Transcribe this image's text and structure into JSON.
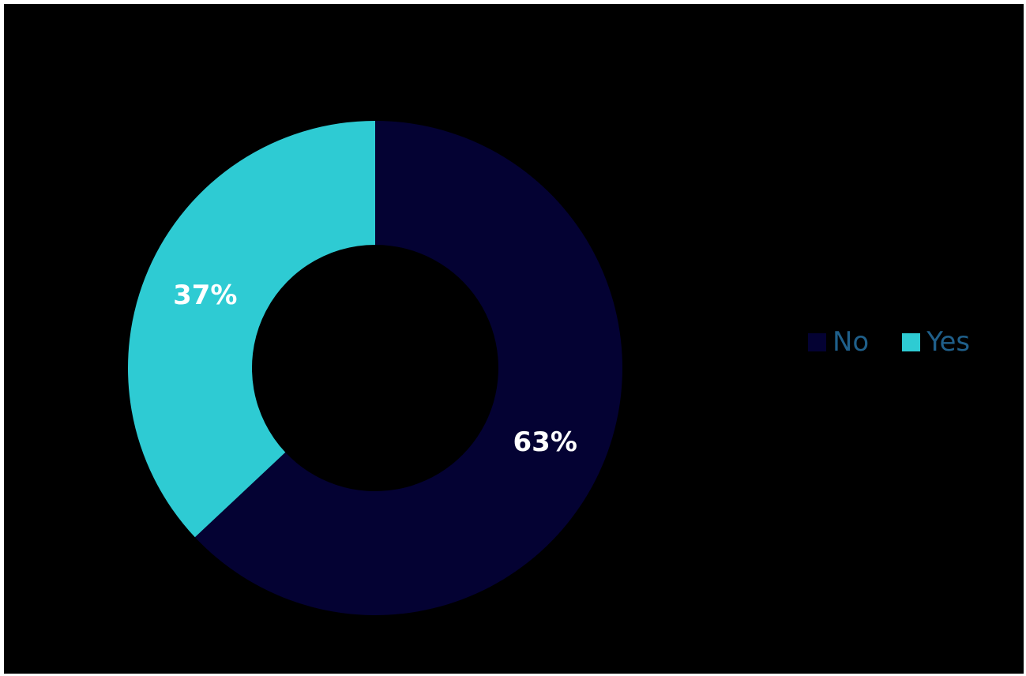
{
  "chart_data": {
    "type": "pie",
    "variant": "donut",
    "categories": [
      "No",
      "Yes"
    ],
    "values": [
      63,
      37
    ],
    "labels": [
      "63%",
      "37%"
    ],
    "colors": {
      "No": "#040233",
      "Yes": "#2ecbd3",
      "background": "#000000",
      "label_text": "#ffffff",
      "legend_text": "#1f5f8a"
    },
    "legend": {
      "placement": "right",
      "items": [
        "No",
        "Yes"
      ]
    }
  }
}
